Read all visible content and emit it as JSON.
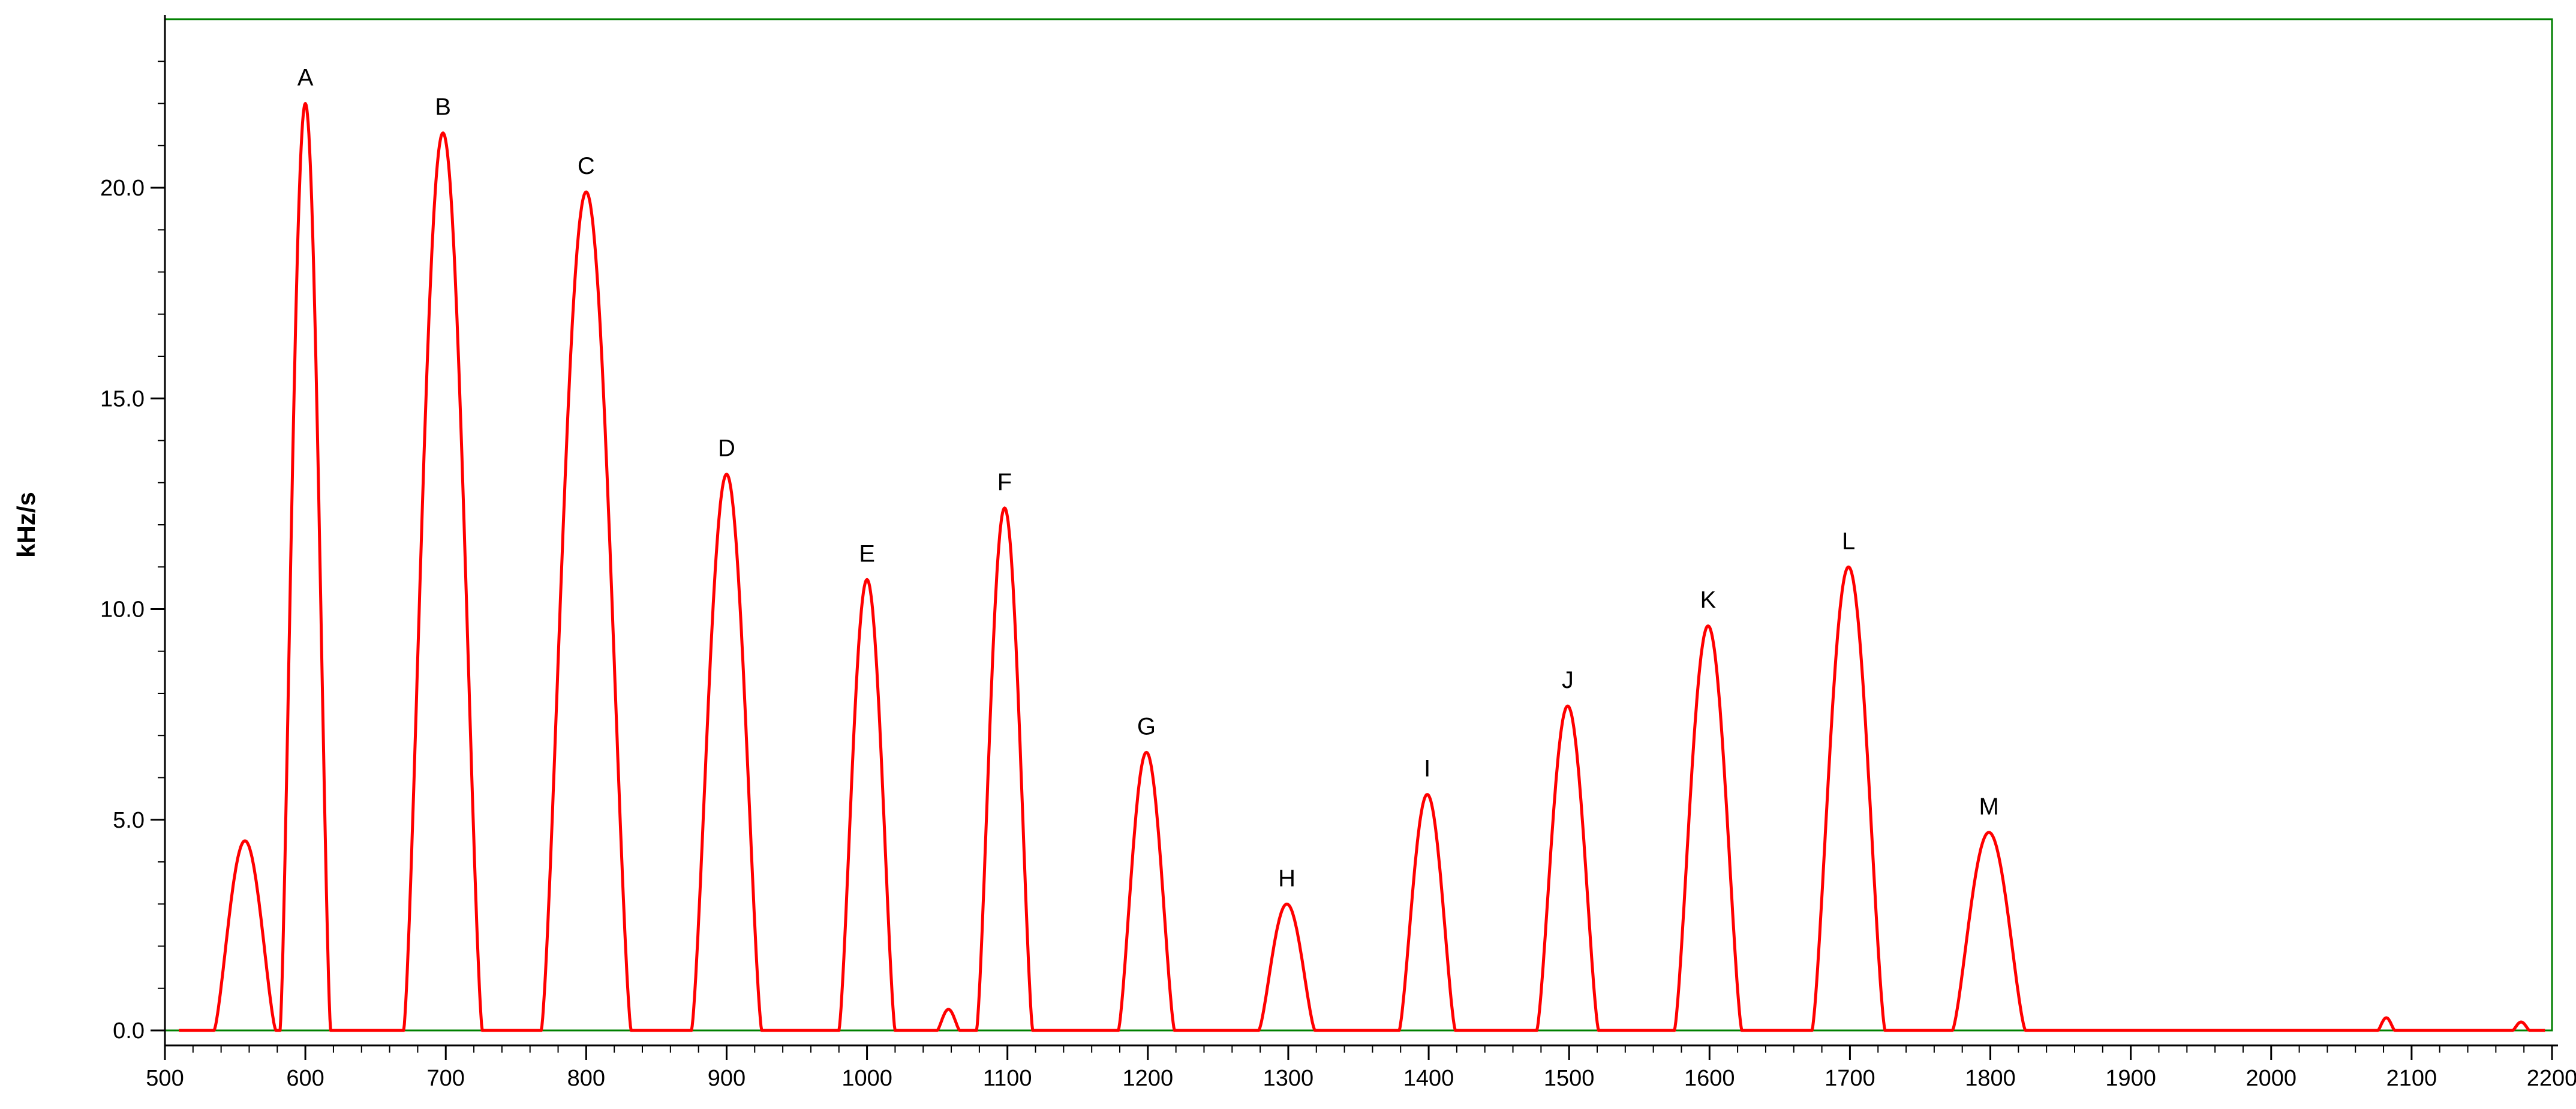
{
  "chart_data": {
    "type": "line",
    "title": "",
    "xlabel": "",
    "ylabel": "kHz/s",
    "xlim": [
      500,
      2200
    ],
    "ylim": [
      0,
      24
    ],
    "grid": false,
    "x_ticks": [
      500,
      600,
      700,
      800,
      900,
      1000,
      1100,
      1200,
      1300,
      1400,
      1500,
      1600,
      1700,
      1800,
      1900,
      2000,
      2100,
      2200
    ],
    "y_ticks": [
      0.0,
      5.0,
      10.0,
      15.0,
      20.0
    ],
    "y_tick_labels": [
      "0.0",
      "5.0",
      "10.0",
      "15.0",
      "20.0"
    ],
    "colors": {
      "trace": "#ff0000",
      "frame": "#008000",
      "axis": "#000000"
    },
    "peaks": [
      {
        "label": "",
        "x": 557,
        "y": 4.5,
        "half_width": 22
      },
      {
        "label": "A",
        "x": 600,
        "y": 22.0,
        "half_width": 18
      },
      {
        "label": "B",
        "x": 698,
        "y": 21.3,
        "half_width": 28
      },
      {
        "label": "C",
        "x": 800,
        "y": 19.9,
        "half_width": 32
      },
      {
        "label": "D",
        "x": 900,
        "y": 13.2,
        "half_width": 25
      },
      {
        "label": "E",
        "x": 1000,
        "y": 10.7,
        "half_width": 20
      },
      {
        "label": "",
        "x": 1058,
        "y": 0.5,
        "half_width": 8
      },
      {
        "label": "F",
        "x": 1098,
        "y": 12.4,
        "half_width": 20
      },
      {
        "label": "G",
        "x": 1199,
        "y": 6.6,
        "half_width": 20
      },
      {
        "label": "H",
        "x": 1299,
        "y": 3.0,
        "half_width": 20
      },
      {
        "label": "I",
        "x": 1399,
        "y": 5.6,
        "half_width": 20
      },
      {
        "label": "J",
        "x": 1499,
        "y": 7.7,
        "half_width": 22
      },
      {
        "label": "K",
        "x": 1599,
        "y": 9.6,
        "half_width": 24
      },
      {
        "label": "L",
        "x": 1699,
        "y": 11.0,
        "half_width": 26
      },
      {
        "label": "M",
        "x": 1799,
        "y": 4.7,
        "half_width": 26
      },
      {
        "label": "",
        "x": 2082,
        "y": 0.3,
        "half_width": 6
      },
      {
        "label": "",
        "x": 2178,
        "y": 0.2,
        "half_width": 6
      }
    ],
    "trace_start_x": 510,
    "trace_end_x": 2195
  }
}
